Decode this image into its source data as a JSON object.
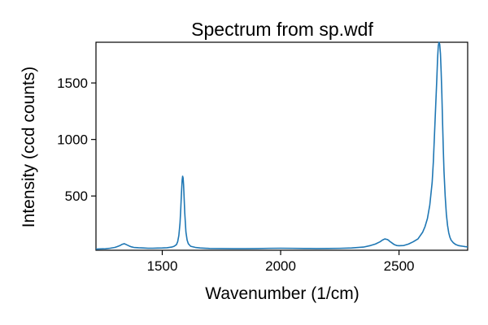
{
  "chart_data": {
    "type": "line",
    "title": "Spectrum from sp.wdf",
    "xlabel": "Wavenumber (1/cm)",
    "ylabel": "Intensity (ccd counts)",
    "xlim": [
      1220,
      2790
    ],
    "ylim": [
      20,
      1860
    ],
    "x_ticks": [
      1500,
      2000,
      2500
    ],
    "x_tick_labels": [
      "1500",
      "2000",
      "2500"
    ],
    "y_ticks": [
      500,
      1000,
      1500
    ],
    "y_tick_labels": [
      "500",
      "1000",
      "1500"
    ],
    "grid": false,
    "legend": "none",
    "color": "#1f77b4",
    "series": [
      {
        "x": [
          1220,
          1240,
          1260,
          1280,
          1300,
          1310,
          1320,
          1330,
          1340,
          1350,
          1360,
          1370,
          1380,
          1400,
          1420,
          1440,
          1460,
          1480,
          1500,
          1520,
          1540,
          1550,
          1560,
          1565,
          1570,
          1575,
          1578,
          1581,
          1584,
          1586,
          1588,
          1590,
          1592,
          1595,
          1600,
          1605,
          1610,
          1620,
          1640,
          1660,
          1700,
          1750,
          1800,
          1850,
          1900,
          1950,
          2000,
          2050,
          2100,
          2150,
          2200,
          2250,
          2300,
          2350,
          2380,
          2400,
          2420,
          2430,
          2440,
          2450,
          2455,
          2460,
          2470,
          2480,
          2490,
          2500,
          2520,
          2540,
          2560,
          2580,
          2600,
          2610,
          2620,
          2630,
          2640,
          2645,
          2650,
          2655,
          2660,
          2663,
          2666,
          2669,
          2672,
          2675,
          2678,
          2681,
          2684,
          2687,
          2690,
          2695,
          2700,
          2705,
          2710,
          2715,
          2720,
          2730,
          2740,
          2750,
          2760,
          2770,
          2780,
          2790
        ],
        "y": [
          30,
          32,
          33,
          38,
          45,
          52,
          60,
          72,
          78,
          68,
          58,
          50,
          45,
          42,
          40,
          38,
          38,
          39,
          40,
          42,
          48,
          55,
          70,
          95,
          150,
          260,
          380,
          520,
          640,
          675,
          660,
          600,
          500,
          350,
          180,
          110,
          78,
          55,
          45,
          40,
          36,
          35,
          34,
          34,
          35,
          37,
          38,
          37,
          36,
          35,
          36,
          37,
          40,
          48,
          62,
          75,
          95,
          110,
          120,
          115,
          110,
          100,
          85,
          70,
          62,
          60,
          62,
          75,
          95,
          120,
          180,
          230,
          300,
          420,
          620,
          800,
          1050,
          1300,
          1550,
          1720,
          1830,
          1860,
          1840,
          1760,
          1600,
          1400,
          1150,
          920,
          720,
          500,
          340,
          240,
          175,
          135,
          110,
          85,
          70,
          62,
          58,
          55,
          52,
          50
        ]
      }
    ]
  }
}
